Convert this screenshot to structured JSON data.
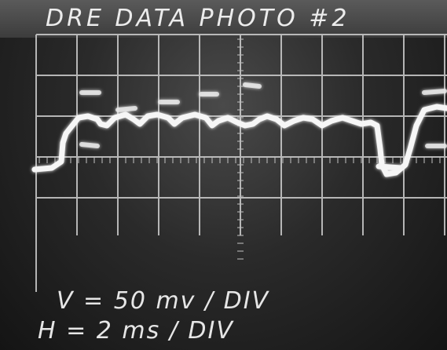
{
  "photo": {
    "title": "DRE DATA PHOTO #2",
    "vertical_scale": "V = 50 mv / DIV",
    "horizontal_scale": "H = 2 ms / DIV"
  },
  "colors": {
    "screen": "#2a2a2a",
    "grid": "#d8d8d8",
    "trace": "#f4f4f4"
  },
  "icons": [
    "oscilloscope-grid",
    "waveform-trace"
  ]
}
